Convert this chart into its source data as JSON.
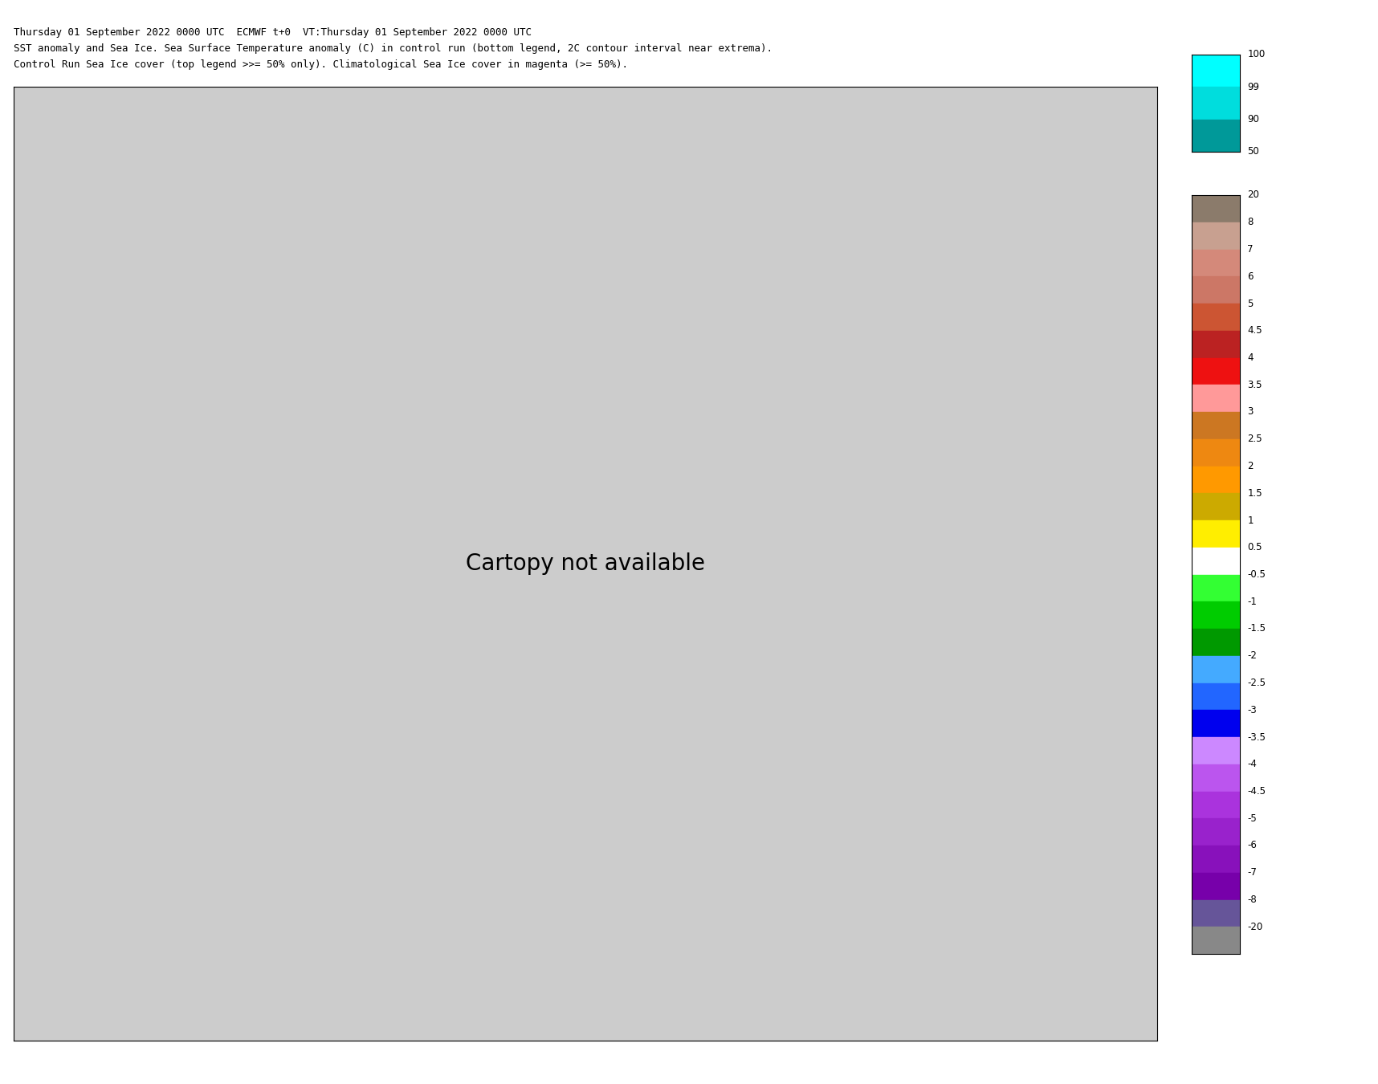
{
  "title_line1": "Thursday 01 September 2022 0000 UTC  ECMWF t+0  VT:Thursday 01 September 2022 0000 UTC",
  "title_line2": "SST anomaly and Sea Ice. Sea Surface Temperature anomaly (C) in control run (bottom legend, 2C contour interval near extrema).",
  "title_line3": "Control Run Sea Ice cover (top legend >>= 50% only). Climatological Sea Ice cover in magenta (>= 50%).",
  "colorbar_levels": [
    20,
    8,
    7,
    6,
    5,
    4.5,
    4,
    3.5,
    3,
    2.5,
    2,
    1.5,
    1,
    0.5,
    -0.5,
    -1,
    -1.5,
    -2,
    -2.5,
    -3,
    -3.5,
    -4,
    -4.5,
    -5,
    -6,
    -7,
    -8,
    -20
  ],
  "colorbar_colors": [
    "#8B7B6B",
    "#C8A090",
    "#D4897A",
    "#CC7766",
    "#CC5533",
    "#BB2222",
    "#EE1111",
    "#FF9999",
    "#CC7722",
    "#EE8811",
    "#FF9900",
    "#CCAA00",
    "#FFEE00",
    "#FFFFFF",
    "#33FF33",
    "#00CC00",
    "#009900",
    "#44AAFF",
    "#2266FF",
    "#0000EE",
    "#CC88FF",
    "#BB55EE",
    "#AA33DD",
    "#9922CC",
    "#8811BB",
    "#7700AA",
    "#665599",
    "#888888"
  ],
  "ice_legend_colors": [
    "#00FFFF",
    "#00EEEE",
    "#00CCCC"
  ],
  "ice_legend_labels": [
    "100",
    "99",
    "90",
    "50"
  ],
  "background_color": "#FFFFFF",
  "map_bg_color": "#AAAAAA",
  "land_color": "#888888"
}
